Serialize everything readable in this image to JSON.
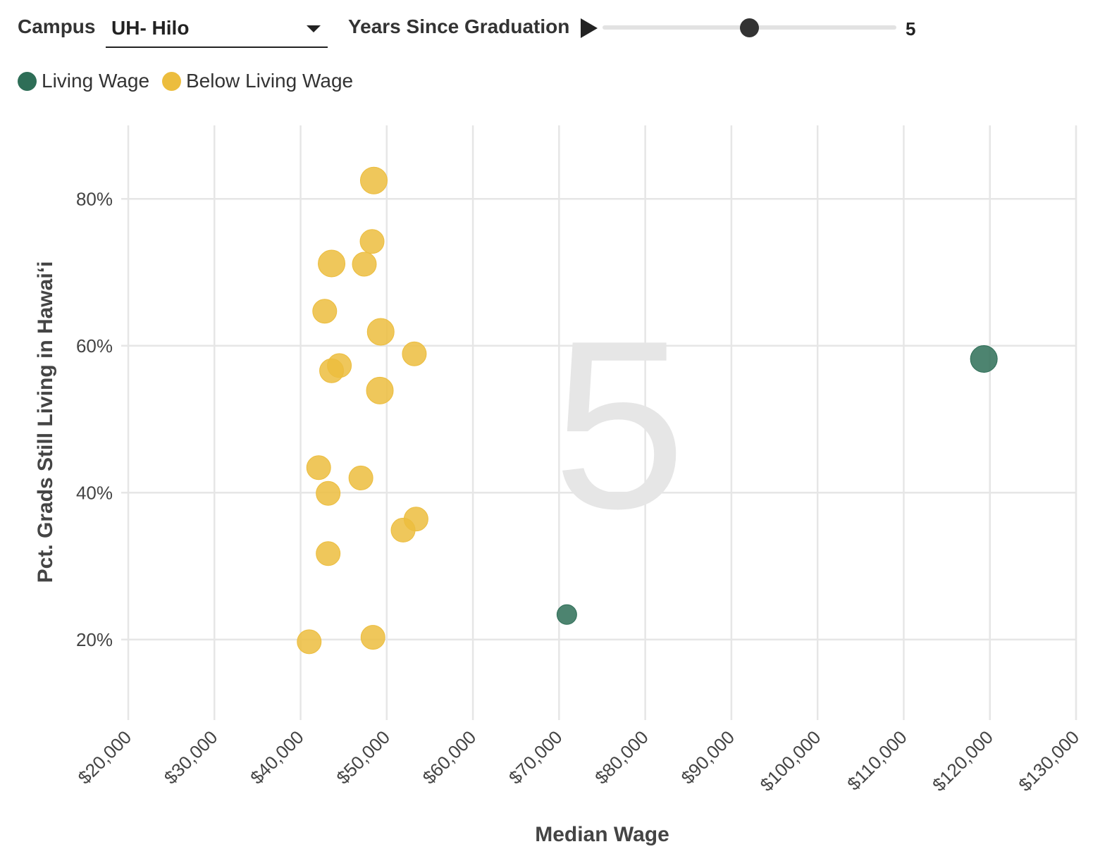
{
  "controls": {
    "campus_label": "Campus",
    "campus_value": "UH- Hilo",
    "years_label": "Years Since Graduation",
    "years_value": "5",
    "years_fraction": 0.5
  },
  "legend": [
    {
      "label": "Living Wage",
      "color": "#2e6e57"
    },
    {
      "label": "Below Living Wage",
      "color": "#ecbd3e"
    }
  ],
  "chart_data": {
    "type": "scatter",
    "watermark": "5",
    "xlabel": "Median Wage",
    "ylabel": "Pct. Grads Still Living in Hawaiʻi",
    "xlim": [
      20000,
      130000
    ],
    "ylim": [
      10,
      90
    ],
    "xticks": [
      20000,
      30000,
      40000,
      50000,
      60000,
      70000,
      80000,
      90000,
      100000,
      110000,
      120000,
      130000
    ],
    "xtick_labels": [
      "$20,000",
      "$30,000",
      "$40,000",
      "$50,000",
      "$60,000",
      "$70,000",
      "$80,000",
      "$90,000",
      "$100,000",
      "$110,000",
      "$120,000",
      "$130,000"
    ],
    "yticks": [
      20,
      40,
      60,
      80
    ],
    "ytick_labels": [
      "20%",
      "40%",
      "60%",
      "80%"
    ],
    "grid": true,
    "series": [
      {
        "name": "Below Living Wage",
        "color": "#ecbd3e",
        "points": [
          {
            "x": 48500,
            "y": 82.5,
            "size": 3
          },
          {
            "x": 48300,
            "y": 74.2,
            "size": 2
          },
          {
            "x": 43600,
            "y": 71.2,
            "size": 3
          },
          {
            "x": 47400,
            "y": 71.1,
            "size": 2
          },
          {
            "x": 42800,
            "y": 64.7,
            "size": 2
          },
          {
            "x": 49300,
            "y": 61.9,
            "size": 3
          },
          {
            "x": 53200,
            "y": 58.9,
            "size": 2
          },
          {
            "x": 44500,
            "y": 57.3,
            "size": 2
          },
          {
            "x": 43600,
            "y": 56.6,
            "size": 2
          },
          {
            "x": 49200,
            "y": 53.9,
            "size": 3
          },
          {
            "x": 42100,
            "y": 43.4,
            "size": 2
          },
          {
            "x": 47000,
            "y": 42.0,
            "size": 2
          },
          {
            "x": 43200,
            "y": 39.9,
            "size": 2
          },
          {
            "x": 53400,
            "y": 36.4,
            "size": 2
          },
          {
            "x": 51900,
            "y": 34.9,
            "size": 2
          },
          {
            "x": 43200,
            "y": 31.7,
            "size": 2
          },
          {
            "x": 48400,
            "y": 20.3,
            "size": 2
          },
          {
            "x": 41000,
            "y": 19.7,
            "size": 2
          }
        ]
      },
      {
        "name": "Living Wage",
        "color": "#2e6e57",
        "points": [
          {
            "x": 119300,
            "y": 58.2,
            "size": 3
          },
          {
            "x": 70900,
            "y": 23.4,
            "size": 1
          }
        ]
      }
    ]
  }
}
